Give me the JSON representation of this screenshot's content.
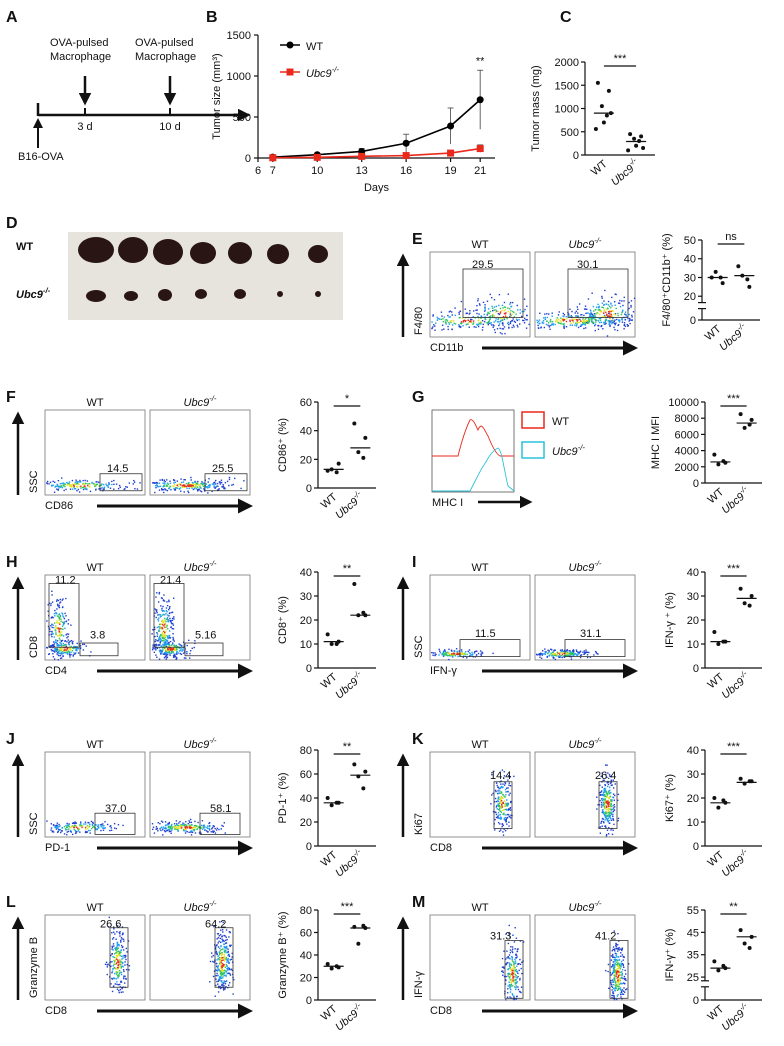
{
  "figure": {
    "timeline": {
      "label": "A",
      "events": [
        [
          "OVA-pulsed",
          "Macrophage"
        ],
        [
          "OVA-pulsed",
          "Macrophage"
        ]
      ],
      "days": [
        "3 d",
        "10 d"
      ],
      "start": "B16-OVA"
    },
    "photo": {
      "label": "D",
      "rows": [
        "WT",
        "Ubc9-/-"
      ]
    },
    "histogram": {
      "label": "G",
      "legend": [
        "WT",
        "Ubc9-/-"
      ],
      "xlabel": "MHC I"
    },
    "flow": [
      {
        "label": "E",
        "headers": [
          "WT",
          "Ubc9-/-"
        ],
        "gates": [
          [
            "29.5"
          ],
          [
            "30.1"
          ]
        ],
        "xlabel": "CD11b",
        "ylabel": "F4/80"
      },
      {
        "label": "F",
        "headers": [
          "WT",
          "Ubc9-/-"
        ],
        "gates": [
          [
            "14.5"
          ],
          [
            "25.5"
          ]
        ],
        "xlabel": "CD86",
        "ylabel": "SSC"
      },
      {
        "label": "H",
        "headers": [
          "WT",
          "Ubc9-/-"
        ],
        "gates": [
          [
            "11.2",
            "3.8"
          ],
          [
            "21.4",
            "5.16"
          ]
        ],
        "xlabel": "CD4",
        "ylabel": "CD8"
      },
      {
        "label": "I",
        "headers": [
          "WT",
          "Ubc9-/-"
        ],
        "gates": [
          [
            "11.5"
          ],
          [
            "31.1"
          ]
        ],
        "xlabel": "IFN-γ",
        "ylabel": "SSC"
      },
      {
        "label": "J",
        "headers": [
          "WT",
          "Ubc9-/-"
        ],
        "gates": [
          [
            "37.0"
          ],
          [
            "58.1"
          ]
        ],
        "xlabel": "PD-1",
        "ylabel": "SSC"
      },
      {
        "label": "K",
        "headers": [
          "WT",
          "Ubc9-/-"
        ],
        "gates": [
          [
            "14.4"
          ],
          [
            "26.4"
          ]
        ],
        "xlabel": "CD8",
        "ylabel": "Ki67"
      },
      {
        "label": "L",
        "headers": [
          "WT",
          "Ubc9-/-"
        ],
        "gates": [
          [
            "26.6"
          ],
          [
            "64.2"
          ]
        ],
        "xlabel": "CD8",
        "ylabel": "Granzyme B"
      },
      {
        "label": "M",
        "headers": [
          "WT",
          "Ubc9-/-"
        ],
        "gates": [
          [
            "31.3"
          ],
          [
            "41.2"
          ]
        ],
        "xlabel": "CD8",
        "ylabel": "IFN-γ"
      }
    ]
  },
  "chart_data": [
    {
      "type": "line",
      "label": "B",
      "xlabel": "Days",
      "ylabel": "Tumor size (mm³)",
      "x": [
        7,
        10,
        13,
        16,
        19,
        21
      ],
      "xlim": [
        6,
        22
      ],
      "xticks": [
        6,
        7,
        10,
        13,
        16,
        19,
        21
      ],
      "ylim": [
        0,
        1500
      ],
      "yticks": [
        0,
        500,
        1000,
        1500
      ],
      "series": [
        {
          "name": "WT",
          "color": "#000000",
          "marker": "circle",
          "values": [
            10,
            40,
            80,
            180,
            390,
            710
          ],
          "errors": [
            8,
            15,
            35,
            110,
            220,
            360
          ]
        },
        {
          "name": "Ubc9-/-",
          "color": "#e8291c",
          "marker": "square",
          "values": [
            3,
            8,
            20,
            30,
            60,
            115
          ],
          "errors": [
            3,
            5,
            8,
            12,
            20,
            45
          ]
        }
      ],
      "annotation": {
        "text": "**",
        "x": 21
      }
    },
    {
      "type": "dot",
      "label": "C",
      "ylabel": "Tumor mass (mg)",
      "categories": [
        "WT",
        "Ubc9-/-"
      ],
      "values": [
        [
          1550,
          1380,
          1050,
          850,
          700,
          560,
          900
        ],
        [
          450,
          400,
          350,
          300,
          200,
          100,
          150
        ]
      ],
      "means": [
        900,
        290
      ],
      "ylim": [
        0,
        2000
      ],
      "yticks": [
        0,
        500,
        1000,
        1500,
        2000
      ],
      "sig": "***"
    },
    {
      "type": "dot",
      "ylabel": "F4/80⁺CD11b⁺ (%)",
      "categories": [
        "WT",
        "Ubc9-/-"
      ],
      "values": [
        [
          30,
          27,
          33,
          30
        ],
        [
          36,
          25,
          31,
          29
        ]
      ],
      "means": [
        30,
        31
      ],
      "ylim": [
        0,
        50
      ],
      "ybreak": 15,
      "yticks": [
        0,
        20,
        30,
        40,
        50
      ],
      "sig": "ns"
    },
    {
      "type": "dot",
      "ylabel": "CD86⁺ (%)",
      "categories": [
        "WT",
        "Ubc9-/-"
      ],
      "values": [
        [
          12,
          17,
          13,
          11
        ],
        [
          45,
          35,
          25,
          21
        ]
      ],
      "means": [
        13,
        28
      ],
      "ylim": [
        0,
        60
      ],
      "yticks": [
        0,
        20,
        40,
        60
      ],
      "sig": "*"
    },
    {
      "type": "dot",
      "ylabel": "MHC I MFI",
      "categories": [
        "WT",
        "Ubc9-/-"
      ],
      "values": [
        [
          3500,
          2500,
          2300,
          2700
        ],
        [
          8500,
          7800,
          6800,
          7200
        ]
      ],
      "means": [
        2600,
        7400
      ],
      "ylim": [
        0,
        10000
      ],
      "yticks": [
        0,
        2000,
        4000,
        6000,
        8000,
        10000
      ],
      "sig": "***"
    },
    {
      "type": "dot",
      "ylabel": "CD8⁺ (%)",
      "categories": [
        "WT",
        "Ubc9-/-"
      ],
      "values": [
        [
          14,
          11,
          10,
          10
        ],
        [
          35,
          22,
          22,
          23
        ]
      ],
      "means": [
        11,
        22
      ],
      "ylim": [
        0,
        40
      ],
      "yticks": [
        0,
        10,
        20,
        30,
        40
      ],
      "sig": "**"
    },
    {
      "type": "dot",
      "ylabel": "IFN-γ ⁺ (%)",
      "categories": [
        "WT",
        "Ubc9-/-"
      ],
      "values": [
        [
          15,
          11,
          10,
          11
        ],
        [
          33,
          30,
          27,
          26
        ]
      ],
      "means": [
        11,
        29
      ],
      "ylim": [
        0,
        40
      ],
      "yticks": [
        0,
        10,
        20,
        30,
        40
      ],
      "sig": "***"
    },
    {
      "type": "dot",
      "ylabel": "PD-1⁺ (%)",
      "categories": [
        "WT",
        "Ubc9-/-"
      ],
      "values": [
        [
          40,
          36,
          34,
          36
        ],
        [
          68,
          62,
          58,
          48
        ]
      ],
      "means": [
        36,
        59
      ],
      "ylim": [
        0,
        80
      ],
      "yticks": [
        0,
        20,
        40,
        60,
        80
      ],
      "sig": "**"
    },
    {
      "type": "dot",
      "ylabel": "Ki67⁺ (%)",
      "categories": [
        "WT",
        "Ubc9-/-"
      ],
      "values": [
        [
          20,
          18,
          16,
          19
        ],
        [
          28,
          27,
          26,
          27
        ]
      ],
      "means": [
        18,
        26.5
      ],
      "ylim": [
        0,
        40
      ],
      "yticks": [
        0,
        10,
        20,
        30,
        40
      ],
      "sig": "***"
    },
    {
      "type": "dot",
      "ylabel": "Granzyme B⁺ (%)",
      "categories": [
        "WT",
        "Ubc9-/-"
      ],
      "values": [
        [
          32,
          29,
          28,
          30
        ],
        [
          65,
          64,
          50,
          66
        ]
      ],
      "means": [
        30,
        64
      ],
      "ylim": [
        0,
        80
      ],
      "yticks": [
        0,
        20,
        40,
        60,
        80
      ],
      "sig": "***"
    },
    {
      "type": "dot",
      "ylabel": "IFN-γ⁺ (%)",
      "categories": [
        "WT",
        "Ubc9-/-"
      ],
      "values": [
        [
          32,
          29,
          28,
          30
        ],
        [
          46,
          43,
          40,
          38
        ]
      ],
      "means": [
        29,
        43
      ],
      "ylim": [
        0,
        55
      ],
      "ybreak": 22,
      "yticks": [
        0,
        25,
        35,
        45,
        55
      ],
      "sig": "**"
    }
  ]
}
